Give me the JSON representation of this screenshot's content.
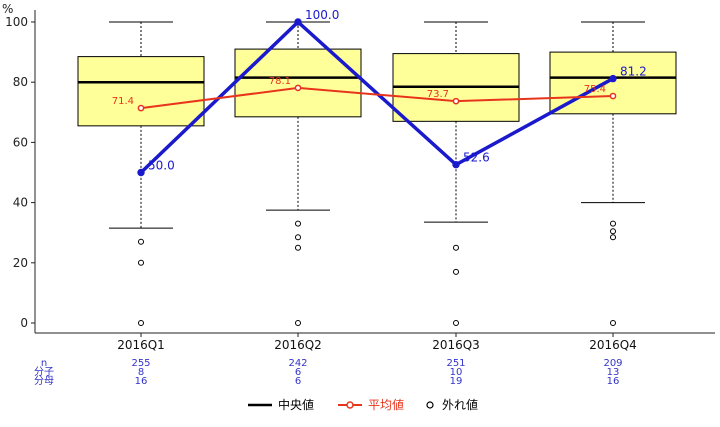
{
  "chart_data": {
    "type": "box",
    "y_unit_label": "%",
    "ylim": [
      0,
      100
    ],
    "y_ticks": [
      0,
      20,
      40,
      60,
      80,
      100
    ],
    "categories": [
      "2016Q1",
      "2016Q2",
      "2016Q3",
      "2016Q4"
    ],
    "boxes": [
      {
        "whisker_low": 31.5,
        "q1": 65.5,
        "median": 80.0,
        "q3": 88.5,
        "whisker_high": 100,
        "outliers": [
          27,
          20,
          0
        ]
      },
      {
        "whisker_low": 37.5,
        "q1": 68.5,
        "median": 81.5,
        "q3": 91.0,
        "whisker_high": 100,
        "outliers": [
          33,
          28.5,
          25,
          0
        ]
      },
      {
        "whisker_low": 33.5,
        "q1": 67.0,
        "median": 78.5,
        "q3": 89.5,
        "whisker_high": 100,
        "outliers": [
          25,
          17,
          0
        ]
      },
      {
        "whisker_low": 40.0,
        "q1": 69.5,
        "median": 81.5,
        "q3": 90.0,
        "whisker_high": 100,
        "outliers": [
          33,
          30.5,
          28.5,
          0
        ]
      }
    ],
    "series": [
      {
        "name": "",
        "values": [
          50.0,
          100.0,
          52.6,
          81.2
        ],
        "labels": [
          "50.0",
          "100.0",
          "52.6",
          "81.2"
        ],
        "color": "#1a1acc"
      },
      {
        "name": "平均値",
        "values": [
          71.4,
          78.1,
          73.7,
          75.4
        ],
        "labels": [
          "71.4",
          "78.1",
          "73.7",
          "75.4"
        ],
        "color": "#e8341c"
      }
    ],
    "stats_rows": [
      {
        "label": "n",
        "values": [
          "255",
          "242",
          "251",
          "209"
        ]
      },
      {
        "label": "分子",
        "values": [
          "8",
          "6",
          "10",
          "13"
        ]
      },
      {
        "label": "分母",
        "values": [
          "16",
          "6",
          "19",
          "16"
        ]
      }
    ],
    "legend": [
      {
        "key": "median",
        "label": "中央値",
        "color": "#000000"
      },
      {
        "key": "mean",
        "label": "平均値",
        "color": "#e8341c"
      },
      {
        "key": "outlier",
        "label": "外れ値",
        "color": "#000000"
      }
    ],
    "colors": {
      "box_fill": "#ffff99",
      "axis": "#222222",
      "stat_text": "#3333cc"
    }
  }
}
